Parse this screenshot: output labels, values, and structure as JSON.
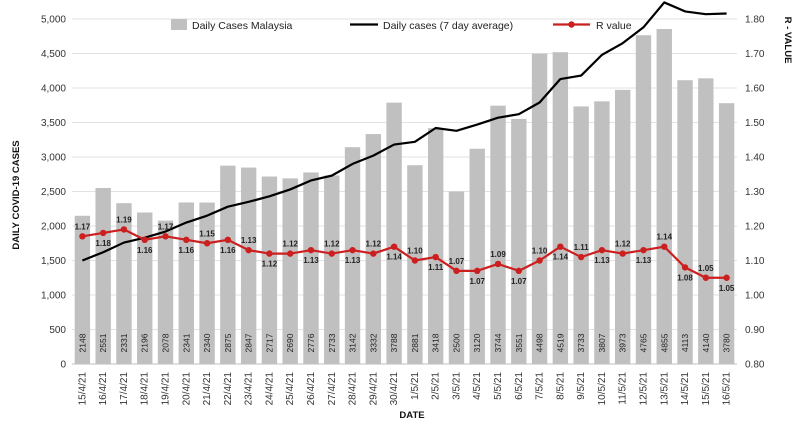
{
  "chart_data": {
    "type": "bar",
    "xlabel": "DATE",
    "ylabel": "DAILY COVID-19 CASES",
    "y2label": "R - VALUE",
    "ylim": [
      0,
      5000
    ],
    "y2lim": [
      0.8,
      1.8
    ],
    "yticks": [
      "0",
      "500",
      "1,000",
      "1,500",
      "2,000",
      "2,500",
      "3,000",
      "3,500",
      "4,000",
      "4,500",
      "5,000"
    ],
    "y2ticks": [
      "0.80",
      "0.90",
      "1.00",
      "1.10",
      "1.20",
      "1.30",
      "1.40",
      "1.50",
      "1.60",
      "1.70",
      "1.80"
    ],
    "grid": true,
    "legend_position": "top",
    "categories": [
      "15/4/21",
      "16/4/21",
      "17/4/21",
      "18/4/21",
      "19/4/21",
      "20/4/21",
      "21/4/21",
      "22/4/21",
      "23/4/21",
      "24/4/21",
      "25/4/21",
      "26/4/21",
      "27/4/21",
      "28/4/21",
      "29/4/21",
      "30/4/21",
      "1/5/21",
      "2/5/21",
      "3/5/21",
      "4/5/21",
      "5/5/21",
      "6/5/21",
      "7/5/21",
      "8/5/21",
      "9/5/21",
      "10/5/21",
      "11/5/21",
      "12/5/21",
      "13/5/21",
      "14/5/21",
      "15/5/21",
      "16/5/21"
    ],
    "series": [
      {
        "name": "Daily Cases Malaysia",
        "type": "bar",
        "axis": "left",
        "color": "#c0c0c0",
        "values": [
          2148,
          2551,
          2331,
          2196,
          2078,
          2341,
          2340,
          2875,
          2847,
          2717,
          2690,
          2776,
          2733,
          3142,
          3332,
          3788,
          2881,
          3418,
          2500,
          3120,
          3744,
          3551,
          4498,
          4519,
          3733,
          3807,
          3973,
          4765,
          4855,
          4113,
          4140,
          3780
        ],
        "labels": [
          "2148",
          "2551",
          "2331",
          "2196",
          "2078",
          "2341",
          "2340",
          "2875",
          "2847",
          "2717",
          "2690",
          "2776",
          "2733",
          "3142",
          "3332",
          "3788",
          "2881",
          "3418",
          "2500",
          "3120",
          "3744",
          "3551",
          "4498",
          "4519",
          "3733",
          "3807",
          "3973",
          "4765",
          "4855",
          "4113",
          "4140",
          "3780"
        ]
      },
      {
        "name": "Daily cases (7 day average)",
        "type": "line",
        "axis": "left",
        "color": "#000000",
        "values": [
          1500,
          1620,
          1760,
          1830,
          1920,
          2050,
          2150,
          2280,
          2350,
          2430,
          2530,
          2660,
          2730,
          2900,
          3020,
          3180,
          3220,
          3420,
          3380,
          3470,
          3570,
          3620,
          3790,
          4130,
          4180,
          4480,
          4650,
          4880,
          5240,
          5110,
          5070,
          5080
        ]
      },
      {
        "name": "R value",
        "type": "line",
        "axis": "right",
        "color": "#cc1f1f",
        "values": [
          1.17,
          1.18,
          1.19,
          1.16,
          1.17,
          1.16,
          1.15,
          1.16,
          1.13,
          1.12,
          1.12,
          1.13,
          1.12,
          1.13,
          1.12,
          1.14,
          1.1,
          1.11,
          1.07,
          1.07,
          1.09,
          1.07,
          1.1,
          1.14,
          1.11,
          1.13,
          1.12,
          1.13,
          1.14,
          1.08,
          1.05,
          1.05
        ],
        "labels": [
          "1.17",
          "1.18",
          "1.19",
          "1.16",
          "1.17",
          "1.16",
          "1.15",
          "1.16",
          "1.13",
          "1.12",
          "1.12",
          "1.13",
          "1.12",
          "1.13",
          "1.12",
          "1.14",
          "1.10",
          "1.11",
          "1.07",
          "1.07",
          "1.09",
          "1.07",
          "1.10",
          "1.14",
          "1.11",
          "1.13",
          "1.12",
          "1.13",
          "1.14",
          "1.08",
          "1.05",
          "1.05"
        ]
      }
    ]
  }
}
